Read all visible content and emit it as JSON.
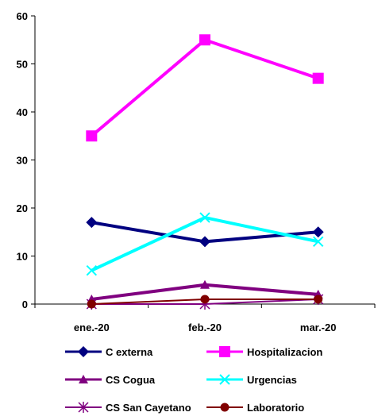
{
  "chart_data": {
    "type": "line",
    "categories": [
      "ene.-20",
      "feb.-20",
      "mar.-20"
    ],
    "ylim": [
      0,
      60
    ],
    "yticks": [
      0,
      10,
      20,
      30,
      40,
      50,
      60
    ],
    "grid": false,
    "legend_position": "bottom",
    "series": [
      {
        "name": "C externa",
        "values": [
          17,
          13,
          15
        ],
        "color": "#000080",
        "marker": "diamond",
        "width": 4
      },
      {
        "name": "Hospitalizacion",
        "values": [
          35,
          55,
          47
        ],
        "color": "#FF00FF",
        "marker": "square",
        "width": 4
      },
      {
        "name": "CS Cogua",
        "values": [
          1,
          4,
          2
        ],
        "color": "#800080",
        "marker": "triangle",
        "width": 4
      },
      {
        "name": "Urgencias",
        "values": [
          7,
          18,
          13
        ],
        "color": "#00FFFF",
        "marker": "x",
        "width": 4
      },
      {
        "name": "CS San Cayetano",
        "values": [
          0,
          0,
          1
        ],
        "color": "#800080",
        "marker": "star",
        "width": 2
      },
      {
        "name": "Laboratorio",
        "values": [
          0,
          1,
          1
        ],
        "color": "#800000",
        "marker": "circle",
        "width": 2
      }
    ]
  }
}
